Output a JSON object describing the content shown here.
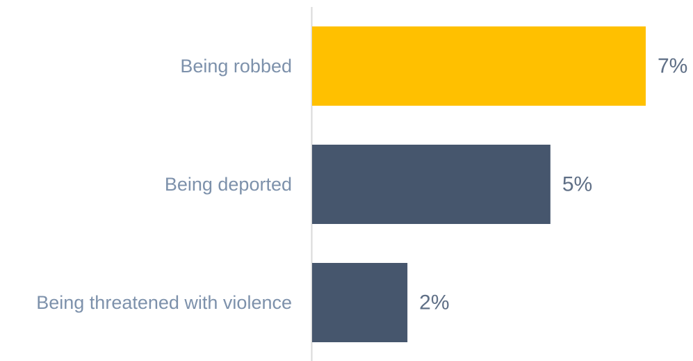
{
  "chart_data": {
    "type": "bar",
    "orientation": "horizontal",
    "categories": [
      "Being robbed",
      "Being deported",
      "Being threatened with violence"
    ],
    "values": [
      7,
      5,
      2
    ],
    "value_labels": [
      "7%",
      "5%",
      "2%"
    ],
    "unit": "%",
    "bar_colors": [
      "#ffc000",
      "#46566d",
      "#46566d"
    ],
    "axis_color": "#d9d9d9",
    "category_label_color": "#7d91ab",
    "value_label_color": "#5f6f86",
    "title": "",
    "xlabel": "",
    "ylabel": "",
    "xlim": [
      0,
      7
    ],
    "grid": false,
    "legend": "none"
  }
}
